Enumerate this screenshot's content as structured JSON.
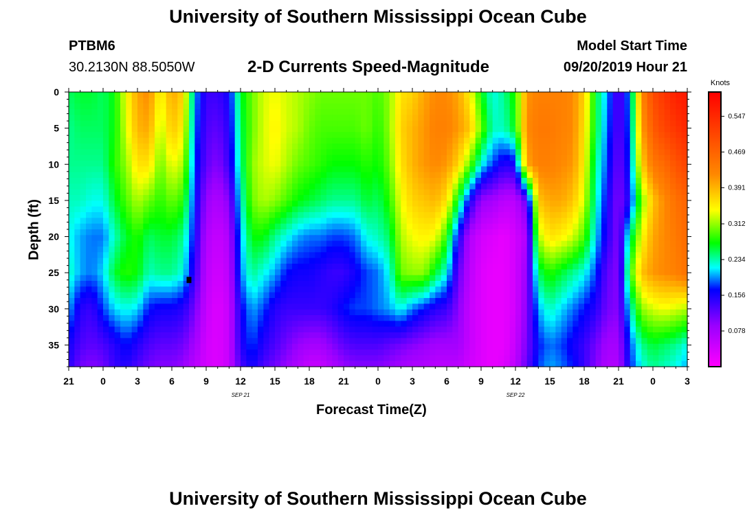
{
  "header": {
    "title": "University of Southern Mississippi Ocean Cube",
    "station": "PTBM6",
    "coords": "30.2130N 88.5050W",
    "subtitle": "2-D Currents Speed-Magnitude",
    "model_label": "Model Start Time",
    "model_time": "09/20/2019 Hour 21"
  },
  "footer": {
    "title": "University of Southern Mississippi Ocean Cube"
  },
  "chart_data": {
    "type": "heatmap",
    "title": "2-D Currents Speed-Magnitude",
    "xlabel": "Forecast Time(Z)",
    "ylabel": "Depth (ft)",
    "x_range_hours": [
      0,
      54
    ],
    "x_ticks": [
      {
        "h": 0,
        "label": "21"
      },
      {
        "h": 3,
        "label": "0"
      },
      {
        "h": 6,
        "label": "3"
      },
      {
        "h": 9,
        "label": "6"
      },
      {
        "h": 12,
        "label": "9"
      },
      {
        "h": 15,
        "label": "12"
      },
      {
        "h": 18,
        "label": "15"
      },
      {
        "h": 21,
        "label": "18"
      },
      {
        "h": 24,
        "label": "21"
      },
      {
        "h": 27,
        "label": "0"
      },
      {
        "h": 30,
        "label": "3"
      },
      {
        "h": 33,
        "label": "6"
      },
      {
        "h": 36,
        "label": "9"
      },
      {
        "h": 39,
        "label": "12"
      },
      {
        "h": 42,
        "label": "15"
      },
      {
        "h": 45,
        "label": "18"
      },
      {
        "h": 48,
        "label": "21"
      },
      {
        "h": 51,
        "label": "0"
      },
      {
        "h": 54,
        "label": "3"
      }
    ],
    "date_labels": [
      {
        "h": 15,
        "label": "SEP 21"
      },
      {
        "h": 39,
        "label": "SEP 22"
      }
    ],
    "y_range_ft": [
      0,
      38
    ],
    "y_ticks": [
      0,
      5,
      10,
      15,
      20,
      25,
      30,
      35
    ],
    "colorbar": {
      "unit": "Knots",
      "min": 0.0,
      "max": 0.6,
      "ticks": [
        "0.547",
        "0.469",
        "0.391",
        "0.312",
        "0.234",
        "0.156",
        "0.078"
      ]
    },
    "marker": {
      "h": 10.5,
      "depth": 26
    },
    "depths_ft": [
      0,
      5,
      10,
      15,
      20,
      25,
      30,
      35,
      38
    ],
    "hours": [
      0,
      1,
      2,
      3,
      4,
      5,
      6,
      7,
      8,
      9,
      10,
      11,
      12,
      13,
      14,
      15,
      16,
      17,
      18,
      19,
      20,
      21,
      22,
      23,
      24,
      25,
      26,
      27,
      28,
      29,
      30,
      31,
      32,
      33,
      34,
      35,
      36,
      37,
      38,
      39,
      40,
      41,
      42,
      43,
      44,
      45,
      46,
      47,
      48,
      49,
      50,
      51,
      52,
      53,
      54
    ],
    "values": [
      [
        0.25,
        0.26,
        0.26,
        0.25,
        0.27,
        0.34,
        0.4,
        0.42,
        0.34,
        0.4,
        0.37,
        0.2,
        0.14,
        0.14,
        0.16,
        0.26,
        0.3,
        0.33,
        0.34,
        0.33,
        0.32,
        0.31,
        0.3,
        0.3,
        0.3,
        0.3,
        0.3,
        0.29,
        0.31,
        0.36,
        0.37,
        0.4,
        0.42,
        0.42,
        0.4,
        0.35,
        0.27,
        0.22,
        0.24,
        0.28,
        0.41,
        0.43,
        0.43,
        0.43,
        0.42,
        0.37,
        0.26,
        0.2,
        0.12,
        0.2,
        0.42,
        0.5,
        0.53,
        0.56,
        0.57
      ],
      [
        0.24,
        0.25,
        0.25,
        0.25,
        0.27,
        0.33,
        0.39,
        0.4,
        0.32,
        0.38,
        0.35,
        0.19,
        0.13,
        0.12,
        0.15,
        0.25,
        0.3,
        0.33,
        0.35,
        0.33,
        0.32,
        0.3,
        0.29,
        0.29,
        0.29,
        0.29,
        0.3,
        0.28,
        0.31,
        0.37,
        0.39,
        0.41,
        0.43,
        0.43,
        0.41,
        0.38,
        0.3,
        0.23,
        0.23,
        0.27,
        0.42,
        0.44,
        0.44,
        0.43,
        0.42,
        0.36,
        0.26,
        0.19,
        0.12,
        0.19,
        0.4,
        0.48,
        0.51,
        0.53,
        0.55
      ],
      [
        0.24,
        0.24,
        0.24,
        0.24,
        0.28,
        0.31,
        0.36,
        0.36,
        0.3,
        0.34,
        0.32,
        0.18,
        0.12,
        0.1,
        0.14,
        0.24,
        0.31,
        0.33,
        0.34,
        0.32,
        0.3,
        0.29,
        0.28,
        0.27,
        0.27,
        0.27,
        0.28,
        0.27,
        0.3,
        0.36,
        0.39,
        0.41,
        0.42,
        0.41,
        0.37,
        0.3,
        0.22,
        0.18,
        0.15,
        0.16,
        0.4,
        0.43,
        0.43,
        0.42,
        0.41,
        0.35,
        0.24,
        0.18,
        0.11,
        0.18,
        0.37,
        0.44,
        0.46,
        0.49,
        0.51
      ],
      [
        0.23,
        0.23,
        0.22,
        0.22,
        0.26,
        0.29,
        0.32,
        0.3,
        0.28,
        0.3,
        0.28,
        0.17,
        0.09,
        0.07,
        0.1,
        0.22,
        0.3,
        0.32,
        0.31,
        0.29,
        0.27,
        0.26,
        0.25,
        0.24,
        0.24,
        0.24,
        0.26,
        0.25,
        0.28,
        0.34,
        0.37,
        0.38,
        0.39,
        0.36,
        0.26,
        0.16,
        0.09,
        0.08,
        0.06,
        0.06,
        0.12,
        0.38,
        0.4,
        0.4,
        0.38,
        0.33,
        0.23,
        0.16,
        0.1,
        0.16,
        0.3,
        0.38,
        0.42,
        0.45,
        0.47
      ],
      [
        0.22,
        0.2,
        0.19,
        0.19,
        0.23,
        0.26,
        0.28,
        0.25,
        0.26,
        0.26,
        0.24,
        0.16,
        0.07,
        0.05,
        0.07,
        0.2,
        0.27,
        0.27,
        0.24,
        0.22,
        0.2,
        0.19,
        0.19,
        0.18,
        0.18,
        0.19,
        0.22,
        0.23,
        0.25,
        0.32,
        0.34,
        0.35,
        0.34,
        0.28,
        0.16,
        0.07,
        0.04,
        0.03,
        0.02,
        0.04,
        0.07,
        0.32,
        0.36,
        0.35,
        0.33,
        0.29,
        0.21,
        0.15,
        0.1,
        0.24,
        0.34,
        0.4,
        0.42,
        0.44,
        0.46
      ],
      [
        0.23,
        0.2,
        0.19,
        0.21,
        0.26,
        0.28,
        0.27,
        0.23,
        0.24,
        0.24,
        0.22,
        0.14,
        0.06,
        0.04,
        0.06,
        0.19,
        0.24,
        0.22,
        0.2,
        0.17,
        0.16,
        0.16,
        0.15,
        0.14,
        0.14,
        0.16,
        0.18,
        0.19,
        0.22,
        0.3,
        0.31,
        0.31,
        0.26,
        0.22,
        0.12,
        0.06,
        0.03,
        0.02,
        0.02,
        0.04,
        0.09,
        0.25,
        0.28,
        0.26,
        0.24,
        0.22,
        0.18,
        0.12,
        0.1,
        0.28,
        0.38,
        0.41,
        0.42,
        0.43,
        0.45
      ],
      [
        0.2,
        0.15,
        0.14,
        0.18,
        0.21,
        0.22,
        0.21,
        0.17,
        0.16,
        0.16,
        0.15,
        0.11,
        0.05,
        0.03,
        0.05,
        0.16,
        0.2,
        0.18,
        0.15,
        0.14,
        0.14,
        0.14,
        0.14,
        0.15,
        0.17,
        0.18,
        0.18,
        0.19,
        0.2,
        0.22,
        0.19,
        0.17,
        0.15,
        0.14,
        0.1,
        0.05,
        0.03,
        0.02,
        0.02,
        0.04,
        0.1,
        0.2,
        0.23,
        0.21,
        0.19,
        0.17,
        0.15,
        0.11,
        0.1,
        0.22,
        0.31,
        0.33,
        0.34,
        0.33,
        0.32
      ],
      [
        0.16,
        0.13,
        0.12,
        0.13,
        0.15,
        0.17,
        0.15,
        0.13,
        0.12,
        0.12,
        0.11,
        0.08,
        0.04,
        0.03,
        0.05,
        0.15,
        0.18,
        0.15,
        0.13,
        0.11,
        0.09,
        0.08,
        0.08,
        0.1,
        0.12,
        0.13,
        0.13,
        0.13,
        0.12,
        0.11,
        0.1,
        0.09,
        0.08,
        0.08,
        0.08,
        0.05,
        0.03,
        0.02,
        0.02,
        0.05,
        0.11,
        0.17,
        0.19,
        0.18,
        0.16,
        0.14,
        0.11,
        0.08,
        0.08,
        0.18,
        0.24,
        0.26,
        0.25,
        0.24,
        0.22
      ],
      [
        0.15,
        0.11,
        0.1,
        0.11,
        0.14,
        0.15,
        0.13,
        0.11,
        0.1,
        0.1,
        0.09,
        0.06,
        0.04,
        0.03,
        0.05,
        0.13,
        0.16,
        0.13,
        0.11,
        0.09,
        0.07,
        0.05,
        0.05,
        0.07,
        0.09,
        0.1,
        0.1,
        0.1,
        0.09,
        0.08,
        0.07,
        0.07,
        0.06,
        0.06,
        0.06,
        0.04,
        0.03,
        0.02,
        0.03,
        0.06,
        0.12,
        0.18,
        0.2,
        0.19,
        0.17,
        0.14,
        0.1,
        0.07,
        0.07,
        0.17,
        0.22,
        0.24,
        0.23,
        0.22,
        0.2
      ]
    ]
  }
}
